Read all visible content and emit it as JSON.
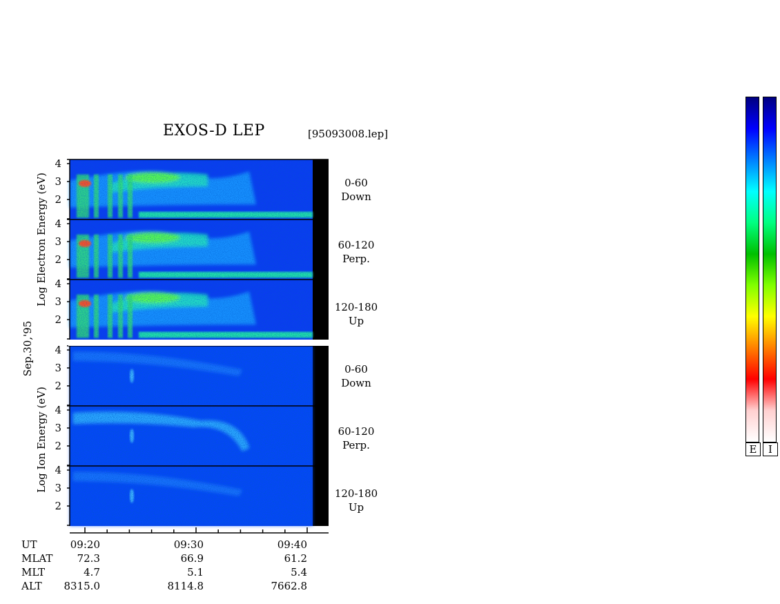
{
  "title": "EXOS-D LEP",
  "filename": "[95093008.lep]",
  "date_label": "Sep.30,'95",
  "electron_axis_label": "Log Electron Energy (eV)",
  "ion_axis_label": "Log Ion Energy (eV)",
  "colorbar": {
    "stops": [
      "#ffffff",
      "#ffd0d0",
      "#ff0000",
      "#ff8000",
      "#ffff00",
      "#80ff00",
      "#00c000",
      "#00ff80",
      "#00ffff",
      "#0080ff",
      "#0000ff",
      "#000080"
    ],
    "labels": [
      "E",
      "I"
    ]
  },
  "chart_data": {
    "type": "heatmap",
    "x_axis": {
      "name": "UT",
      "tick_labels": [
        "09:20",
        "09:30",
        "09:40"
      ]
    },
    "y_ticks": [
      "4",
      "3",
      "2"
    ],
    "panels": [
      {
        "species": "Electron",
        "pitch": "0-60",
        "direction": "Down"
      },
      {
        "species": "Electron",
        "pitch": "60-120",
        "direction": "Perp."
      },
      {
        "species": "Electron",
        "pitch": "120-180",
        "direction": "Up"
      },
      {
        "species": "Ion",
        "pitch": "0-60",
        "direction": "Down"
      },
      {
        "species": "Ion",
        "pitch": "60-120",
        "direction": "Perp."
      },
      {
        "species": "Ion",
        "pitch": "120-180",
        "direction": "Up"
      }
    ],
    "orbit_info": {
      "labels": [
        "UT",
        "MLAT",
        "MLT",
        "ALT"
      ],
      "columns": [
        {
          "UT": "09:20",
          "MLAT": "72.3",
          "MLT": "4.7",
          "ALT": "8315.0"
        },
        {
          "UT": "09:30",
          "MLAT": "66.9",
          "MLT": "5.1",
          "ALT": "8114.8"
        },
        {
          "UT": "09:40",
          "MLAT": "61.2",
          "MLT": "5.4",
          "ALT": "7662.8"
        }
      ]
    }
  }
}
